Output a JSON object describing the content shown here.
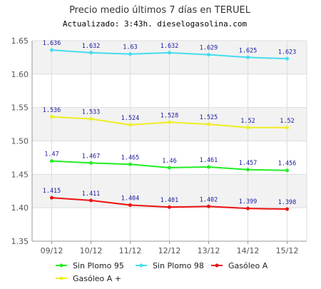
{
  "chart_data": {
    "type": "line",
    "title": "Precio medio últimos 7 días en TERUEL",
    "subtitle": "Actualizado: 3:43h. dieselogasolina.com",
    "xlabel": "",
    "ylabel": "",
    "categories": [
      "09/12",
      "10/12",
      "11/12",
      "12/12",
      "13/12",
      "14/12",
      "15/12"
    ],
    "ylim": [
      1.35,
      1.65
    ],
    "yticks": [
      "1.35",
      "1.40",
      "1.45",
      "1.50",
      "1.55",
      "1.60",
      "1.65"
    ],
    "grid": true,
    "legend_position": "bottom",
    "series": [
      {
        "name": "Sin Plomo 95",
        "color": "#22ee22",
        "values": [
          1.47,
          1.467,
          1.465,
          1.46,
          1.461,
          1.457,
          1.456
        ]
      },
      {
        "name": "Sin Plomo 98",
        "color": "#44ddee",
        "values": [
          1.636,
          1.632,
          1.63,
          1.632,
          1.629,
          1.625,
          1.623
        ]
      },
      {
        "name": "Gasóleo A",
        "color": "#ee1111",
        "values": [
          1.415,
          1.411,
          1.404,
          1.401,
          1.402,
          1.399,
          1.398
        ]
      },
      {
        "name": "Gasóleo A +",
        "color": "#eeee22",
        "values": [
          1.536,
          1.533,
          1.524,
          1.528,
          1.525,
          1.52,
          1.52
        ]
      }
    ]
  }
}
